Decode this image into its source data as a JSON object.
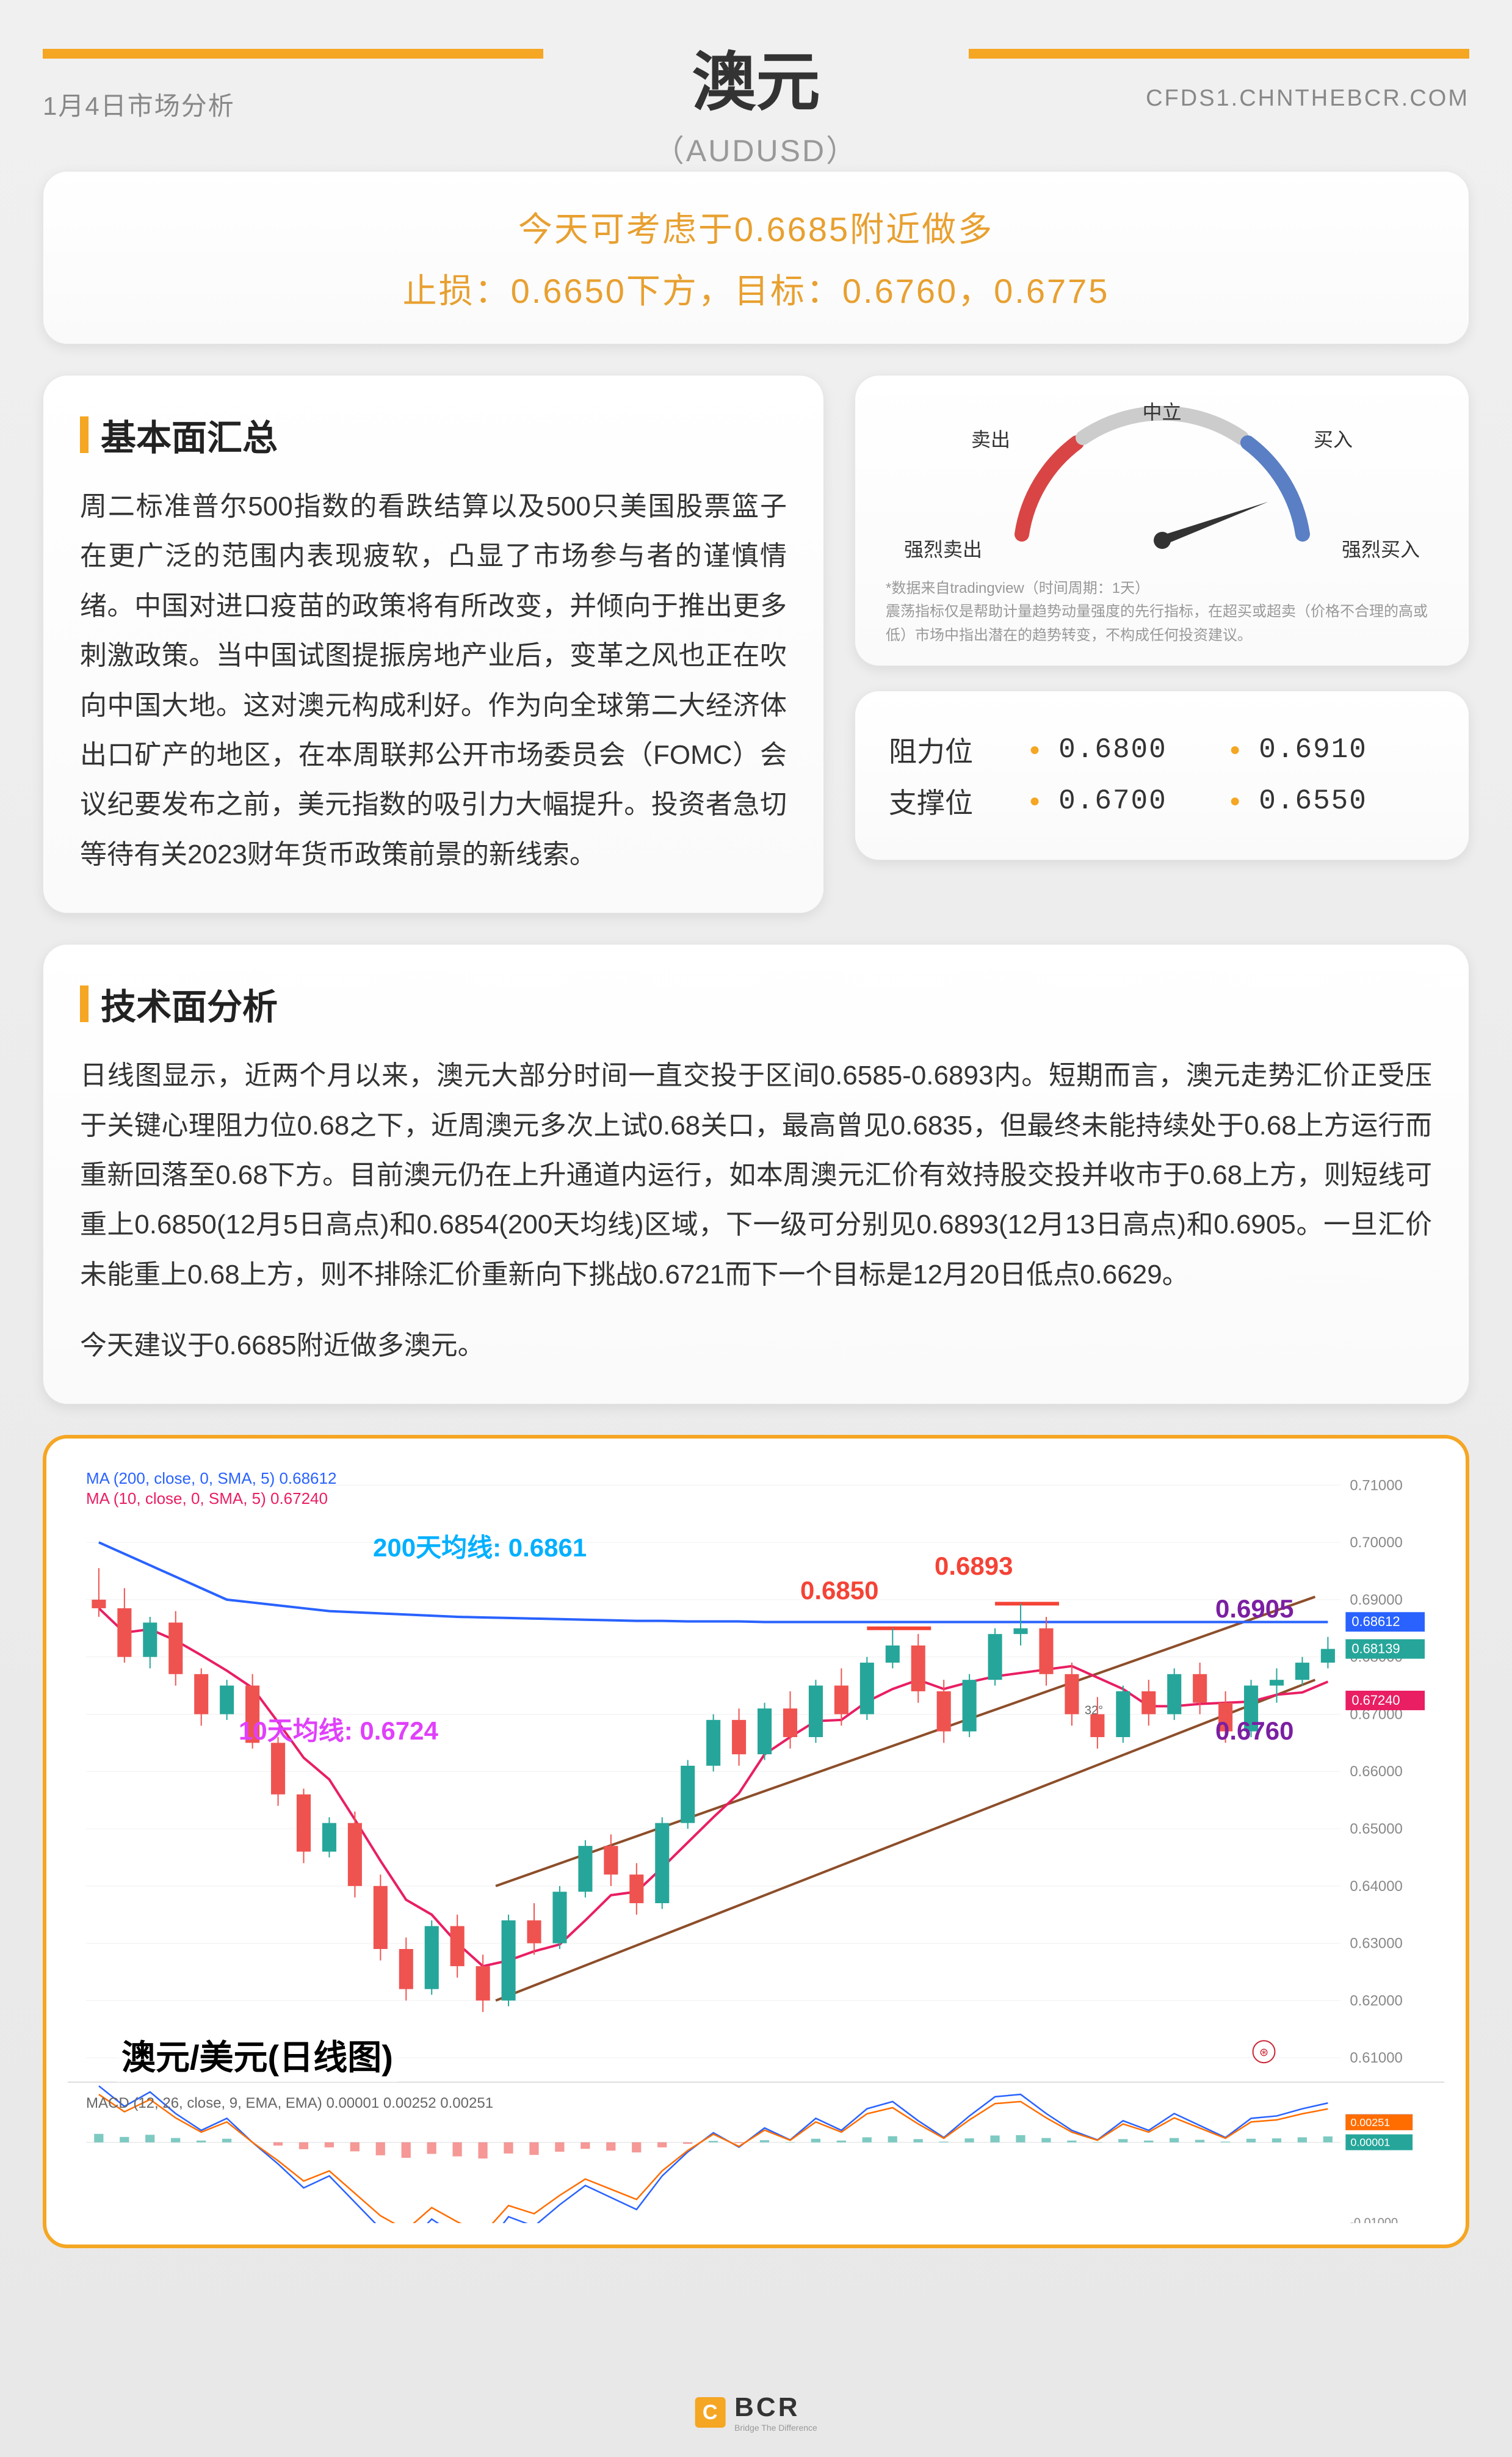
{
  "header": {
    "date": "1月4日市场分析",
    "title": "澳元",
    "subtitle": "（AUDUSD）",
    "url": "CFDS1.CHNTHEBCR.COM"
  },
  "signal": {
    "line1": "今天可考虑于0.6685附近做多",
    "line2": "止损：0.6650下方，目标：0.6760，0.6775"
  },
  "fundamentals": {
    "title": "基本面汇总",
    "body": "周二标准普尔500指数的看跌结算以及500只美国股票篮子在更广泛的范围内表现疲软，凸显了市场参与者的谨慎情绪。中国对进口疫苗的政策将有所改变，并倾向于推出更多刺激政策。当中国试图提振房地产业后，变革之风也正在吹向中国大地。这对澳元构成利好。作为向全球第二大经济体出口矿产的地区，在本周联邦公开市场委员会（FOMC）会议纪要发布之前，美元指数的吸引力大幅提升。投资者急切等待有关2023财年货币政策前景的新线索。"
  },
  "gauge": {
    "labels": {
      "strong_sell": "强烈卖出",
      "sell": "卖出",
      "neutral": "中立",
      "buy": "买入",
      "strong_buy": "强烈买入"
    },
    "needle_angle": 70,
    "arc_colors": {
      "sell": "#d94545",
      "neutral": "#cccccc",
      "buy": "#5a7fc4"
    },
    "note": "*数据来自tradingview（时间周期：1天）\n震荡指标仅是帮助计量趋势动量强度的先行指标，在超买或超卖（价格不合理的高或低）市场中指出潜在的趋势转变，不构成任何投资建议。"
  },
  "levels": {
    "resistance_label": "阻力位",
    "support_label": "支撑位",
    "resistance": [
      "0.6800",
      "0.6910"
    ],
    "support": [
      "0.6700",
      "0.6550"
    ]
  },
  "technical": {
    "title": "技术面分析",
    "body": "日线图显示，近两个月以来，澳元大部分时间一直交投于区间0.6585-0.6893内。短期而言，澳元走势汇价正受压于关键心理阻力位0.68之下，近周澳元多次上试0.68关口，最高曾见0.6835，但最终未能持续处于0.68上方运行而重新回落至0.68下方。目前澳元仍在上升通道内运行，如本周澳元汇价有效持股交投并收市于0.68上方，则短线可重上0.6850(12月5日高点)和0.6854(200天均线)区域，下一级可分别见0.6893(12月13日高点)和0.6905。一旦汇价未能重上0.68上方，则不排除汇价重新向下挑战0.6721而下一个目标是12月20日低点0.6629。",
    "recommendation": "今天建议于0.6685附近做多澳元。"
  },
  "chart": {
    "title": "澳元/美元(日线图)",
    "ma_labels": {
      "ma200": "MA (200, close, 0, SMA, 5)  0.68612",
      "ma10": "MA (10, close, 0, SMA, 5)  0.67240"
    },
    "macd_label": "MACD (12, 26, close, 9, EMA, EMA)  0.00001  0.00252  0.00251",
    "annotations": {
      "ma200_line": "200天均线: 0.6861",
      "ma10_line": "10天均线: 0.6724",
      "high1": "0.6850",
      "high2": "0.6893",
      "trend1": "0.6905",
      "trend2": "0.6760"
    },
    "y_axis": {
      "min": 0.61,
      "max": 0.71,
      "step": 0.01,
      "ticks": [
        "0.71000",
        "0.70000",
        "0.69000",
        "0.68612",
        "0.68139",
        "0.67240",
        "0.67000",
        "0.66000",
        "0.65000",
        "0.64000",
        "0.63000",
        "0.62000",
        "0.61000"
      ]
    },
    "price_labels": {
      "ma200": "0.68612",
      "close": "0.68139",
      "ma10": "0.67240"
    },
    "macd_y": {
      "ticks": [
        "0.00252",
        "0.00251",
        "0.00001",
        "-0.01000"
      ]
    },
    "colors": {
      "candle_up": "#26a69a",
      "candle_down": "#ef5350",
      "ma200": "#2962ff",
      "ma10": "#e91e63",
      "anno_blue": "#00b0ff",
      "anno_red": "#f44336",
      "anno_pink": "#e040fb",
      "anno_purple": "#7b1fa2",
      "trend_line": "#8d4e2a",
      "macd_line": "#2962ff",
      "macd_signal": "#ff6d00",
      "macd_hist_pos": "#26a69a",
      "macd_hist_neg": "#ef5350"
    },
    "candles": [
      {
        "o": 0.69,
        "h": 0.6955,
        "l": 0.687,
        "c": 0.6885
      },
      {
        "o": 0.6885,
        "h": 0.692,
        "l": 0.679,
        "c": 0.68
      },
      {
        "o": 0.68,
        "h": 0.687,
        "l": 0.678,
        "c": 0.686
      },
      {
        "o": 0.686,
        "h": 0.688,
        "l": 0.675,
        "c": 0.677
      },
      {
        "o": 0.677,
        "h": 0.678,
        "l": 0.668,
        "c": 0.67
      },
      {
        "o": 0.67,
        "h": 0.676,
        "l": 0.669,
        "c": 0.675
      },
      {
        "o": 0.675,
        "h": 0.677,
        "l": 0.664,
        "c": 0.665
      },
      {
        "o": 0.665,
        "h": 0.666,
        "l": 0.654,
        "c": 0.656
      },
      {
        "o": 0.656,
        "h": 0.657,
        "l": 0.644,
        "c": 0.646
      },
      {
        "o": 0.646,
        "h": 0.652,
        "l": 0.645,
        "c": 0.651
      },
      {
        "o": 0.651,
        "h": 0.653,
        "l": 0.638,
        "c": 0.64
      },
      {
        "o": 0.64,
        "h": 0.642,
        "l": 0.627,
        "c": 0.629
      },
      {
        "o": 0.629,
        "h": 0.631,
        "l": 0.62,
        "c": 0.622
      },
      {
        "o": 0.622,
        "h": 0.634,
        "l": 0.621,
        "c": 0.633
      },
      {
        "o": 0.633,
        "h": 0.635,
        "l": 0.624,
        "c": 0.626
      },
      {
        "o": 0.626,
        "h": 0.628,
        "l": 0.618,
        "c": 0.62
      },
      {
        "o": 0.62,
        "h": 0.635,
        "l": 0.619,
        "c": 0.634
      },
      {
        "o": 0.634,
        "h": 0.637,
        "l": 0.628,
        "c": 0.63
      },
      {
        "o": 0.63,
        "h": 0.64,
        "l": 0.629,
        "c": 0.639
      },
      {
        "o": 0.639,
        "h": 0.648,
        "l": 0.638,
        "c": 0.647
      },
      {
        "o": 0.647,
        "h": 0.649,
        "l": 0.64,
        "c": 0.642
      },
      {
        "o": 0.642,
        "h": 0.644,
        "l": 0.635,
        "c": 0.637
      },
      {
        "o": 0.637,
        "h": 0.652,
        "l": 0.636,
        "c": 0.651
      },
      {
        "o": 0.651,
        "h": 0.662,
        "l": 0.65,
        "c": 0.661
      },
      {
        "o": 0.661,
        "h": 0.67,
        "l": 0.66,
        "c": 0.669
      },
      {
        "o": 0.669,
        "h": 0.671,
        "l": 0.661,
        "c": 0.663
      },
      {
        "o": 0.663,
        "h": 0.672,
        "l": 0.662,
        "c": 0.671
      },
      {
        "o": 0.671,
        "h": 0.674,
        "l": 0.664,
        "c": 0.666
      },
      {
        "o": 0.666,
        "h": 0.676,
        "l": 0.665,
        "c": 0.675
      },
      {
        "o": 0.675,
        "h": 0.678,
        "l": 0.668,
        "c": 0.67
      },
      {
        "o": 0.67,
        "h": 0.68,
        "l": 0.669,
        "c": 0.679
      },
      {
        "o": 0.679,
        "h": 0.685,
        "l": 0.678,
        "c": 0.682
      },
      {
        "o": 0.682,
        "h": 0.684,
        "l": 0.672,
        "c": 0.674
      },
      {
        "o": 0.674,
        "h": 0.676,
        "l": 0.665,
        "c": 0.667
      },
      {
        "o": 0.667,
        "h": 0.677,
        "l": 0.666,
        "c": 0.676
      },
      {
        "o": 0.676,
        "h": 0.685,
        "l": 0.675,
        "c": 0.684
      },
      {
        "o": 0.684,
        "h": 0.6893,
        "l": 0.682,
        "c": 0.685
      },
      {
        "o": 0.685,
        "h": 0.687,
        "l": 0.675,
        "c": 0.677
      },
      {
        "o": 0.677,
        "h": 0.679,
        "l": 0.668,
        "c": 0.67
      },
      {
        "o": 0.67,
        "h": 0.673,
        "l": 0.664,
        "c": 0.666
      },
      {
        "o": 0.666,
        "h": 0.675,
        "l": 0.665,
        "c": 0.674
      },
      {
        "o": 0.674,
        "h": 0.676,
        "l": 0.668,
        "c": 0.67
      },
      {
        "o": 0.67,
        "h": 0.678,
        "l": 0.669,
        "c": 0.677
      },
      {
        "o": 0.677,
        "h": 0.679,
        "l": 0.67,
        "c": 0.672
      },
      {
        "o": 0.672,
        "h": 0.674,
        "l": 0.665,
        "c": 0.667
      },
      {
        "o": 0.667,
        "h": 0.676,
        "l": 0.666,
        "c": 0.675
      },
      {
        "o": 0.675,
        "h": 0.678,
        "l": 0.672,
        "c": 0.676
      },
      {
        "o": 0.676,
        "h": 0.68,
        "l": 0.675,
        "c": 0.679
      },
      {
        "o": 0.679,
        "h": 0.6835,
        "l": 0.678,
        "c": 0.6814
      }
    ]
  },
  "footer": {
    "brand": "BCR",
    "tagline": "Bridge The Difference"
  }
}
